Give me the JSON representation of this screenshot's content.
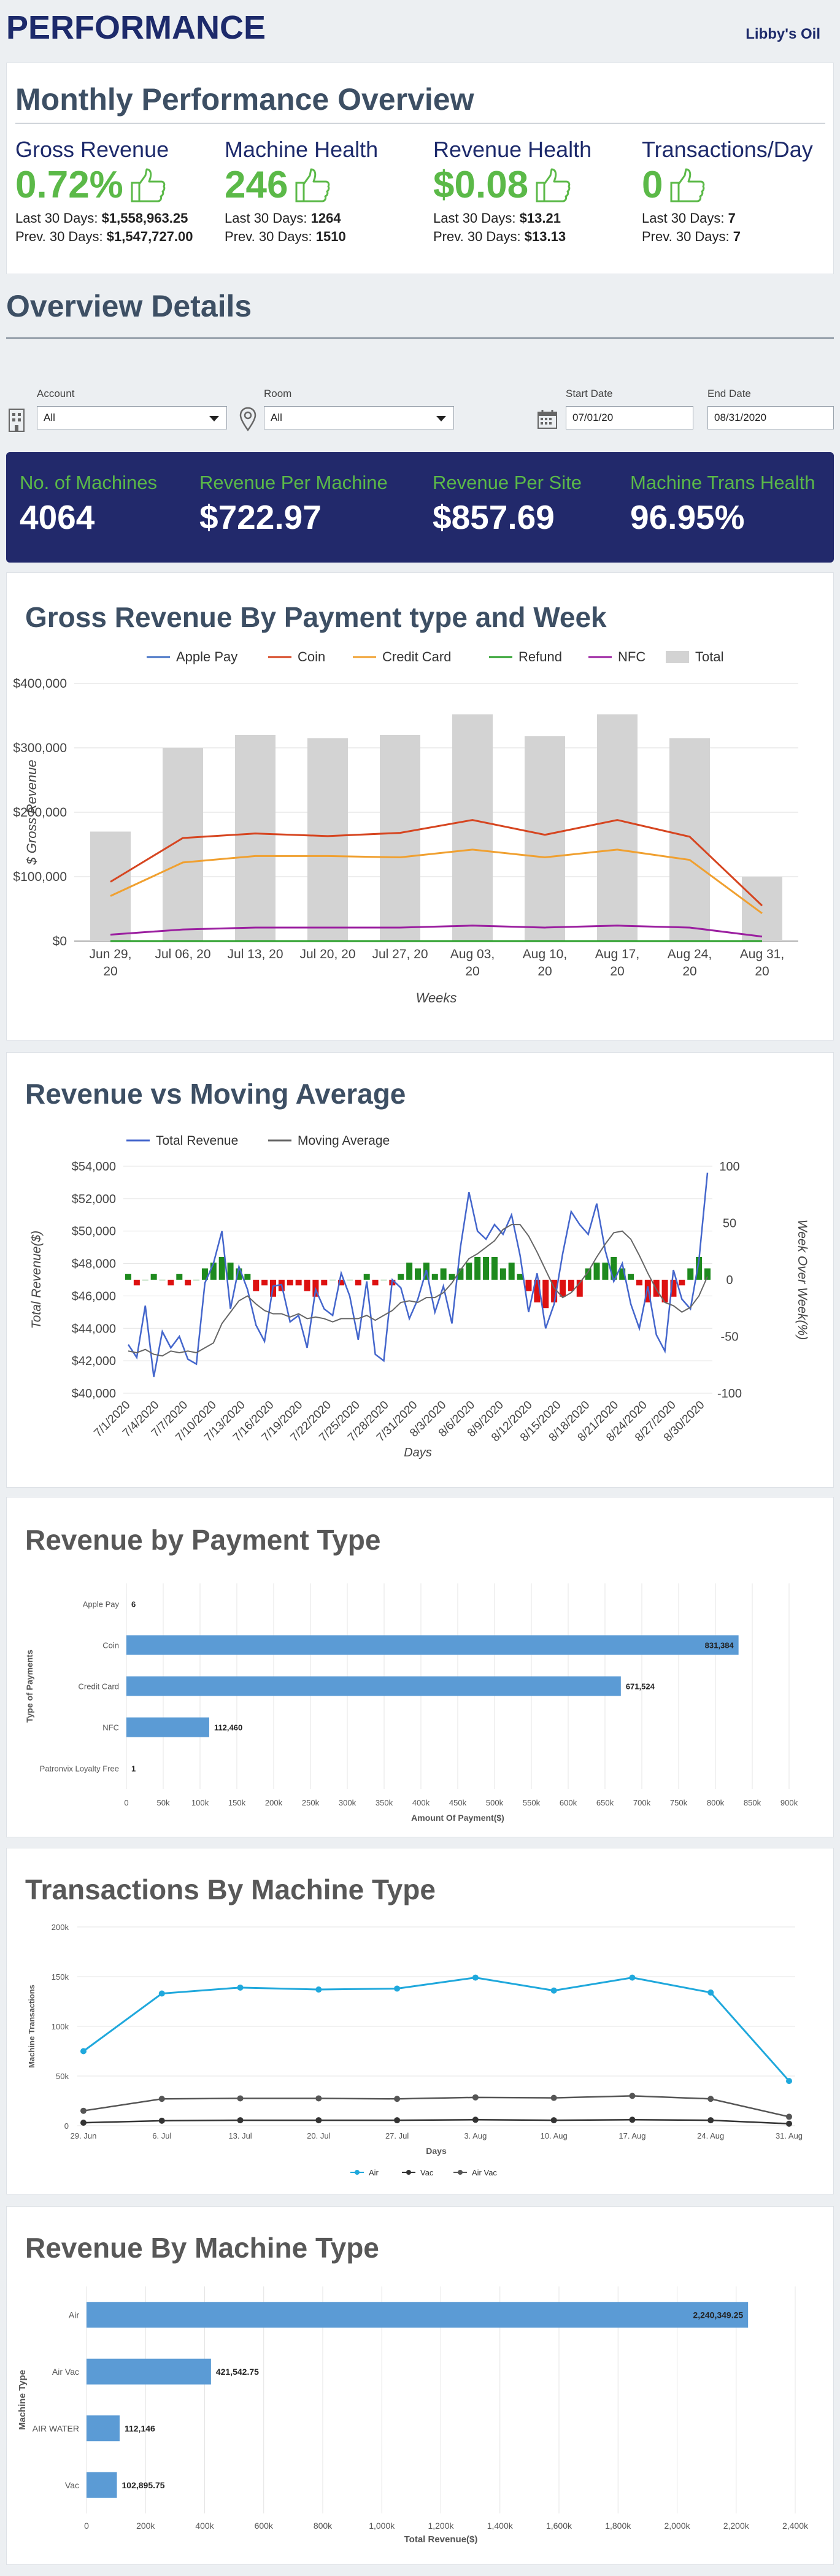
{
  "header": {
    "title": "PERFORMANCE",
    "account": "Libby's Oil"
  },
  "monthly": {
    "title": "Monthly Performance Overview",
    "kpis": [
      {
        "label": "Gross Revenue",
        "value": "0.72%",
        "last_label": "Last 30 Days:",
        "last": "$1,558,963.25",
        "prev_label": "Prev. 30 Days:",
        "prev": "$1,547,727.00"
      },
      {
        "label": "Machine Health",
        "value": "246",
        "last_label": "Last 30 Days:",
        "last": "1264",
        "prev_label": "Prev. 30 Days:",
        "prev": "1510"
      },
      {
        "label": "Revenue Health",
        "value": "$0.08",
        "last_label": "Last 30 Days:",
        "last": "$13.21",
        "prev_label": "Prev. 30 Days:",
        "prev": "$13.13"
      },
      {
        "label": "Transactions/Day",
        "value": "0",
        "last_label": "Last 30 Days:",
        "last": "7",
        "prev_label": "Prev. 30 Days:",
        "prev": "7"
      }
    ],
    "thumb_color": "#5bb948"
  },
  "overview": {
    "title": "Overview Details"
  },
  "filters": {
    "account_label": "Account",
    "account_value": "All",
    "room_label": "Room",
    "room_value": "All",
    "start_label": "Start Date",
    "start_value": "07/01/20",
    "end_label": "End Date",
    "end_value": "08/31/2020"
  },
  "summary": [
    {
      "label": "No. of Machines",
      "value": "4064"
    },
    {
      "label": "Revenue Per Machine",
      "value": "$722.97"
    },
    {
      "label": "Revenue Per Site",
      "value": "$857.69"
    },
    {
      "label": "Machine Trans Health",
      "value": "96.95%"
    }
  ],
  "colors": {
    "navy": "#22296b",
    "green": "#5bb948",
    "bar_blue": "#5b9bd5"
  },
  "chart_data": [
    {
      "type": "bar",
      "title": "Gross Revenue By Payment type and Week",
      "xlabel": "Weeks",
      "ylabel": "$ Gross Revenue",
      "ylim": [
        0,
        400000
      ],
      "yticks": [
        "$0",
        "$100,000",
        "$200,000",
        "$300,000",
        "$400,000"
      ],
      "categories": [
        [
          "Jun 29,",
          "20"
        ],
        [
          "Jul 06, 20"
        ],
        [
          "Jul 13, 20"
        ],
        [
          "Jul 20, 20"
        ],
        [
          "Jul 27, 20"
        ],
        [
          "Aug 03,",
          "20"
        ],
        [
          "Aug 10,",
          "20"
        ],
        [
          "Aug 17,",
          "20"
        ],
        [
          "Aug 24,",
          "20"
        ],
        [
          "Aug 31,",
          "20"
        ]
      ],
      "total": [
        170000,
        300000,
        320000,
        315000,
        320000,
        352000,
        318000,
        352000,
        315000,
        100000
      ],
      "series": [
        {
          "name": "Apple Pay",
          "color": "#4472c4",
          "values": [
            0,
            0,
            0,
            0,
            0,
            0,
            0,
            0,
            0,
            0
          ]
        },
        {
          "name": "Coin",
          "color": "#d64520",
          "values": [
            92000,
            160000,
            167000,
            163000,
            168000,
            188000,
            165000,
            188000,
            162000,
            55000
          ]
        },
        {
          "name": "Credit Card",
          "color": "#f0a030",
          "values": [
            70000,
            122000,
            132000,
            132000,
            130000,
            142000,
            130000,
            142000,
            126000,
            43000
          ]
        },
        {
          "name": "Refund",
          "color": "#2ca02c",
          "values": [
            0,
            0,
            0,
            0,
            0,
            0,
            0,
            0,
            0,
            0
          ]
        },
        {
          "name": "NFC",
          "color": "#9b1fa0",
          "values": [
            10000,
            18000,
            21000,
            21000,
            21000,
            24000,
            21000,
            24000,
            21000,
            7000
          ]
        }
      ],
      "total_name": "Total",
      "legend": "top"
    },
    {
      "type": "line",
      "title": "Revenue vs Moving Average",
      "xlabel": "Days",
      "ylabel": "Total Revenue($)",
      "y2label": "Week Over Week(%)",
      "ylim": [
        40000,
        54000
      ],
      "y2lim": [
        -100,
        100
      ],
      "yticks": [
        "$40,000",
        "$42,000",
        "$44,000",
        "$46,000",
        "$48,000",
        "$50,000",
        "$52,000",
        "$54,000"
      ],
      "y2ticks": [
        "-100",
        "-50",
        "0",
        "50",
        "100"
      ],
      "xticks": [
        "7/1/2020",
        "7/4/2020",
        "7/7/2020",
        "7/10/2020",
        "7/13/2020",
        "7/16/2020",
        "7/19/2020",
        "7/22/2020",
        "7/25/2020",
        "7/28/2020",
        "7/31/2020",
        "8/3/2020",
        "8/6/2020",
        "8/9/2020",
        "8/12/2020",
        "8/15/2020",
        "8/18/2020",
        "8/21/2020",
        "8/24/2020",
        "8/27/2020",
        "8/30/2020"
      ],
      "series": [
        {
          "name": "Total Revenue",
          "color": "#4466cc",
          "values": [
            43000,
            42200,
            45400,
            41000,
            43800,
            42800,
            43500,
            42100,
            41800,
            46800,
            48000,
            50000,
            45200,
            47800,
            46400,
            44200,
            43200,
            46600,
            46700,
            44400,
            44800,
            42800,
            46400,
            45200,
            44800,
            47400,
            46000,
            43300,
            46900,
            42400,
            42000,
            47000,
            46500,
            44600,
            45800,
            47600,
            45000,
            46600,
            44300,
            49000,
            52400,
            50000,
            49500,
            50400,
            49800,
            51000,
            48500,
            45000,
            47400,
            44000,
            45500,
            48600,
            51200,
            50400,
            49800,
            51700,
            48800,
            46900,
            48000,
            45500,
            44000,
            46600,
            43600,
            42600,
            47600,
            45800,
            45200,
            48200,
            53600
          ]
        },
        {
          "name": "Moving Average",
          "color": "#666666",
          "values": [
            42600,
            42500,
            42700,
            42400,
            42300,
            42600,
            42500,
            42600,
            42500,
            42800,
            43100,
            44300,
            45000,
            45700,
            46000,
            45500,
            45100,
            44900,
            44900,
            44700,
            44900,
            44600,
            44700,
            44600,
            44400,
            44600,
            44600,
            44600,
            44800,
            44500,
            44800,
            45100,
            45600,
            45700,
            45600,
            45900,
            45900,
            46200,
            46800,
            47600,
            48300,
            48600,
            49000,
            49400,
            50100,
            50400,
            50400,
            49700,
            48700,
            47600,
            46500,
            45900,
            46200,
            46800,
            47500,
            48400,
            49200,
            49900,
            50000,
            49500,
            48500,
            47400,
            46400,
            45600,
            45400,
            45000,
            45300,
            46000,
            47200
          ]
        }
      ],
      "wow_bars": [
        5,
        -5,
        0,
        5,
        0,
        -5,
        5,
        -5,
        0,
        10,
        15,
        20,
        15,
        10,
        5,
        -10,
        -5,
        -15,
        -10,
        -5,
        -5,
        -10,
        -15,
        -5,
        0,
        -5,
        0,
        -5,
        5,
        -5,
        0,
        -5,
        5,
        15,
        10,
        15,
        5,
        10,
        5,
        10,
        15,
        20,
        20,
        20,
        10,
        15,
        5,
        -10,
        -20,
        -25,
        -20,
        -15,
        -10,
        -15,
        10,
        15,
        15,
        20,
        10,
        5,
        -5,
        -20,
        -15,
        -20,
        -15,
        -5,
        10,
        20,
        10
      ],
      "bar_colors": {
        "positive": "#1e8a1e",
        "negative": "#dd1111"
      },
      "legend": "top-left"
    },
    {
      "type": "bar",
      "orientation": "horizontal",
      "title": "Revenue by Payment Type",
      "xlabel": "Amount Of Payment($)",
      "ylabel": "Type of Payments",
      "xlim": [
        0,
        900000
      ],
      "xticks": [
        "0",
        "50k",
        "100k",
        "150k",
        "200k",
        "250k",
        "300k",
        "350k",
        "400k",
        "450k",
        "500k",
        "550k",
        "600k",
        "650k",
        "700k",
        "750k",
        "800k",
        "850k",
        "900k"
      ],
      "categories": [
        "Apple Pay",
        "Coin",
        "Credit Card",
        "NFC",
        "Patronvix Loyalty Free"
      ],
      "values": [
        6,
        831384,
        671524,
        112460,
        1
      ],
      "labels": [
        "6",
        "831,384",
        "671,524",
        "112,460",
        "1"
      ]
    },
    {
      "type": "line",
      "title": "Transactions By Machine Type",
      "xlabel": "Days",
      "ylabel": "Machine Transactions",
      "ylim": [
        0,
        200000
      ],
      "yticks": [
        "0",
        "50k",
        "100k",
        "150k",
        "200k"
      ],
      "categories": [
        "29. Jun",
        "6. Jul",
        "13. Jul",
        "20. Jul",
        "27. Jul",
        "3. Aug",
        "10. Aug",
        "17. Aug",
        "24. Aug",
        "31. Aug"
      ],
      "series": [
        {
          "name": "Air",
          "color": "#1fa8dc",
          "values": [
            75000,
            133000,
            139000,
            137000,
            138000,
            149000,
            136000,
            149000,
            134000,
            45000
          ]
        },
        {
          "name": "Vac",
          "color": "#333333",
          "values": [
            3000,
            5000,
            5500,
            5500,
            5500,
            6000,
            5500,
            6000,
            5500,
            2000
          ]
        },
        {
          "name": "Air Vac",
          "color": "#555555",
          "values": [
            15000,
            27000,
            27500,
            27500,
            27000,
            28500,
            28000,
            30000,
            27000,
            9000
          ]
        }
      ],
      "legend": "bottom"
    },
    {
      "type": "bar",
      "orientation": "horizontal",
      "title": "Revenue By Machine Type",
      "xlabel": "Total Revenue($)",
      "ylabel": "Machine Type",
      "xlim": [
        0,
        2400000
      ],
      "xticks": [
        "0",
        "200k",
        "400k",
        "600k",
        "800k",
        "1,000k",
        "1,200k",
        "1,400k",
        "1,600k",
        "1,800k",
        "2,000k",
        "2,200k",
        "2,400k"
      ],
      "categories": [
        "Air",
        "Air Vac",
        "AIR WATER",
        "Vac"
      ],
      "values": [
        2240349.25,
        421542.75,
        112146,
        102895.75
      ],
      "labels": [
        "2,240,349.25",
        "421,542.75",
        "112,146",
        "102,895.75"
      ]
    }
  ]
}
